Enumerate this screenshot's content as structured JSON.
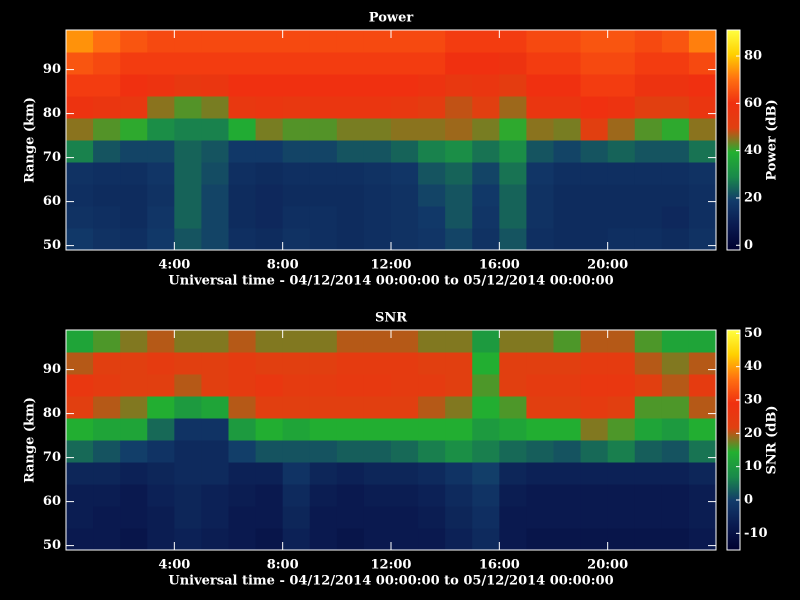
{
  "chart_data": [
    {
      "type": "heatmap",
      "title": "Power",
      "xlabel": "Universal time - 04/12/2014 00:00:00 to 05/12/2014 00:00:00",
      "ylabel": "Range (km)",
      "colorbar_label": "Power (dB)",
      "x_edges": [
        0,
        1,
        2,
        3,
        4,
        5,
        6,
        7,
        8,
        9,
        10,
        11,
        12,
        13,
        14,
        15,
        16,
        17,
        18,
        19,
        20,
        21,
        22,
        23,
        24
      ],
      "y_edges": [
        49,
        54,
        59,
        64,
        69,
        74,
        79,
        84,
        89,
        94,
        99
      ],
      "z": [
        [
          18,
          16,
          15,
          18,
          22,
          20,
          15,
          14,
          16,
          15,
          14,
          15,
          16,
          17,
          20,
          16,
          22,
          15,
          14,
          14,
          15,
          15,
          14,
          16
        ],
        [
          16,
          15,
          14,
          17,
          24,
          20,
          14,
          13,
          15,
          15,
          14,
          15,
          16,
          18,
          22,
          17,
          24,
          16,
          14,
          14,
          14,
          14,
          13,
          15
        ],
        [
          15,
          14,
          14,
          16,
          24,
          20,
          14,
          13,
          14,
          14,
          14,
          15,
          16,
          20,
          22,
          18,
          24,
          16,
          14,
          14,
          14,
          14,
          14,
          15
        ],
        [
          16,
          15,
          15,
          17,
          24,
          21,
          15,
          14,
          15,
          15,
          15,
          16,
          17,
          22,
          24,
          20,
          26,
          17,
          15,
          15,
          15,
          15,
          15,
          16
        ],
        [
          28,
          22,
          20,
          20,
          24,
          22,
          18,
          18,
          20,
          20,
          22,
          22,
          24,
          28,
          30,
          26,
          30,
          22,
          20,
          22,
          24,
          22,
          22,
          26
        ],
        [
          45,
          42,
          40,
          30,
          28,
          28,
          38,
          44,
          42,
          42,
          44,
          44,
          45,
          45,
          46,
          44,
          40,
          45,
          44,
          50,
          46,
          42,
          40,
          45
        ],
        [
          58,
          56,
          55,
          45,
          42,
          44,
          55,
          56,
          55,
          56,
          56,
          56,
          55,
          52,
          48,
          50,
          46,
          56,
          56,
          60,
          58,
          50,
          50,
          56
        ],
        [
          62,
          62,
          60,
          58,
          55,
          56,
          60,
          60,
          60,
          60,
          60,
          60,
          60,
          58,
          55,
          56,
          52,
          60,
          60,
          62,
          62,
          58,
          58,
          60
        ],
        [
          66,
          64,
          62,
          62,
          62,
          62,
          62,
          62,
          62,
          62,
          62,
          62,
          62,
          62,
          60,
          60,
          58,
          62,
          62,
          64,
          64,
          62,
          62,
          64
        ],
        [
          74,
          70,
          66,
          64,
          64,
          64,
          64,
          64,
          64,
          64,
          64,
          64,
          64,
          64,
          62,
          62,
          62,
          64,
          64,
          66,
          66,
          64,
          66,
          72
        ]
      ],
      "xlim": [
        0,
        24
      ],
      "ylim": [
        49,
        99
      ],
      "xticks": [
        {
          "value": 4,
          "label": "4:00"
        },
        {
          "value": 8,
          "label": "8:00"
        },
        {
          "value": 12,
          "label": "12:00"
        },
        {
          "value": 16,
          "label": "16:00"
        },
        {
          "value": 20,
          "label": "20:00"
        }
      ],
      "yticks": [
        50,
        60,
        70,
        80,
        90
      ],
      "zlim": [
        -2,
        91
      ],
      "zticks": [
        0,
        20,
        40,
        60,
        80
      ],
      "colormap": [
        "#000030",
        "#0a1a50",
        "#123a6a",
        "#1a8a4a",
        "#22b030",
        "#e04010",
        "#f03010",
        "#ff7010",
        "#ffd000",
        "#ffff40"
      ]
    },
    {
      "type": "heatmap",
      "title": "SNR",
      "xlabel": "Universal time - 04/12/2014 00:00:00 to 05/12/2014 00:00:00",
      "ylabel": "Range (km)",
      "colorbar_label": "SNR (dB)",
      "x_edges": [
        0,
        1,
        2,
        3,
        4,
        5,
        6,
        7,
        8,
        9,
        10,
        11,
        12,
        13,
        14,
        15,
        16,
        17,
        18,
        19,
        20,
        21,
        22,
        23,
        24
      ],
      "y_edges": [
        49,
        54,
        59,
        64,
        69,
        74,
        79,
        84,
        89,
        94,
        99
      ],
      "z": [
        [
          -8,
          -8,
          -9,
          -7,
          -6,
          -7,
          -8,
          -9,
          -6,
          -8,
          -9,
          -8,
          -8,
          -8,
          -6,
          -4,
          -8,
          -9,
          -9,
          -9,
          -9,
          -9,
          -9,
          -8
        ],
        [
          -7,
          -8,
          -8,
          -7,
          -5,
          -6,
          -8,
          -8,
          -5,
          -8,
          -8,
          -8,
          -8,
          -7,
          -5,
          -3,
          -8,
          -8,
          -8,
          -8,
          -8,
          -8,
          -8,
          -7
        ],
        [
          -7,
          -7,
          -8,
          -6,
          -5,
          -6,
          -7,
          -8,
          -4,
          -7,
          -8,
          -7,
          -7,
          -6,
          -4,
          -2,
          -7,
          -8,
          -8,
          -8,
          -8,
          -8,
          -8,
          -7
        ],
        [
          -5,
          -5,
          -6,
          -5,
          -4,
          -4,
          -6,
          -6,
          -2,
          -5,
          -6,
          -5,
          -5,
          -4,
          -2,
          0,
          -5,
          -6,
          -6,
          -6,
          -6,
          -6,
          -6,
          -5
        ],
        [
          4,
          2,
          0,
          -2,
          -4,
          -4,
          0,
          2,
          2,
          2,
          3,
          3,
          4,
          6,
          8,
          6,
          4,
          3,
          2,
          4,
          6,
          3,
          2,
          5
        ],
        [
          14,
          12,
          12,
          4,
          -2,
          -2,
          10,
          14,
          12,
          14,
          14,
          14,
          14,
          14,
          14,
          10,
          12,
          14,
          14,
          18,
          16,
          12,
          10,
          14
        ],
        [
          22,
          20,
          18,
          14,
          10,
          12,
          20,
          22,
          22,
          22,
          22,
          22,
          22,
          20,
          18,
          14,
          16,
          22,
          22,
          24,
          22,
          16,
          16,
          20
        ],
        [
          26,
          24,
          22,
          22,
          20,
          22,
          24,
          26,
          24,
          24,
          25,
          25,
          24,
          24,
          22,
          16,
          22,
          24,
          24,
          26,
          26,
          22,
          20,
          24
        ],
        [
          20,
          22,
          22,
          24,
          22,
          22,
          24,
          22,
          22,
          22,
          24,
          24,
          24,
          22,
          22,
          14,
          22,
          22,
          22,
          24,
          24,
          20,
          18,
          20
        ],
        [
          12,
          16,
          18,
          20,
          18,
          18,
          20,
          18,
          18,
          18,
          20,
          20,
          20,
          18,
          18,
          10,
          18,
          18,
          16,
          20,
          20,
          16,
          12,
          12
        ]
      ],
      "xlim": [
        0,
        24
      ],
      "ylim": [
        49,
        99
      ],
      "xticks": [
        {
          "value": 4,
          "label": "4:00"
        },
        {
          "value": 8,
          "label": "8:00"
        },
        {
          "value": 12,
          "label": "12:00"
        },
        {
          "value": 16,
          "label": "16:00"
        },
        {
          "value": 20,
          "label": "20:00"
        }
      ],
      "yticks": [
        50,
        60,
        70,
        80,
        90
      ],
      "zlim": [
        -15,
        51
      ],
      "zticks": [
        -10,
        0,
        10,
        20,
        30,
        40,
        50
      ],
      "colormap": [
        "#000030",
        "#0a1a50",
        "#123a6a",
        "#1a8a4a",
        "#22b030",
        "#e04010",
        "#f03010",
        "#ff7010",
        "#ffd000",
        "#ffff40"
      ]
    }
  ]
}
